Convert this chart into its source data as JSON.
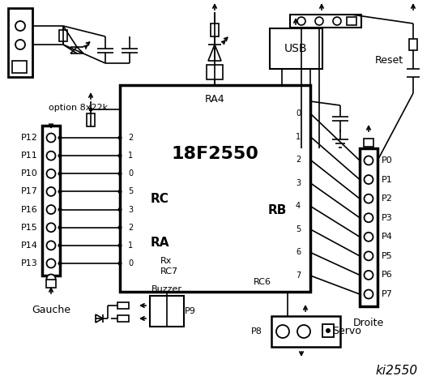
{
  "title": "ki2550",
  "bg_color": "#ffffff",
  "line_color": "#000000",
  "chip_label": "18F2550",
  "chip_sublabel": "RA4",
  "rc_label": "RC",
  "ra_label": "RA",
  "rb_label": "RB",
  "rc7_label": "RC7",
  "rc6_label": "RC6",
  "rx_label": "Rx",
  "left_connector_label": "Gauche",
  "right_connector_label": "Droite",
  "left_pins": [
    "P12",
    "P11",
    "P10",
    "P17",
    "P16",
    "P15",
    "P14",
    "P13"
  ],
  "right_pins": [
    "P0",
    "P1",
    "P2",
    "P3",
    "P4",
    "P5",
    "P6",
    "P7"
  ],
  "left_pin_numbers": [
    "2",
    "1",
    "0",
    "5",
    "3",
    "2",
    "1",
    "0"
  ],
  "right_pin_numbers": [
    "0",
    "1",
    "2",
    "3",
    "4",
    "5",
    "6",
    "7"
  ],
  "option_label": "option 8x22k",
  "usb_label": "USB",
  "reset_label": "Reset",
  "buzzer_label": "Buzzer",
  "servo_label": "Servo",
  "p8_label": "P8",
  "p9_label": "P9"
}
